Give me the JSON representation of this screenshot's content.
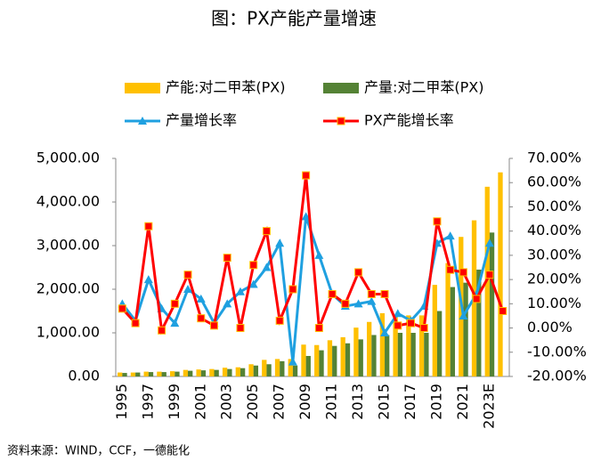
{
  "chart_data": {
    "type": "bar_line",
    "title": "图：PX产能产量增速",
    "source": "资料来源：WIND，CCF，一德能化",
    "categories": [
      "1995",
      null,
      "1997",
      null,
      "1999",
      null,
      "2001",
      null,
      "2003",
      null,
      "2005",
      null,
      "2007",
      null,
      "2009",
      null,
      "2011",
      null,
      "2013",
      null,
      "2015",
      null,
      "2017",
      null,
      "2019",
      null,
      "2021",
      null,
      "2023E",
      null
    ],
    "series": [
      {
        "name": "产能:对二甲苯(PX)",
        "type": "bar",
        "color": "#ffc000",
        "values": [
          90,
          90,
          110,
          110,
          120,
          150,
          160,
          170,
          200,
          210,
          280,
          380,
          400,
          400,
          730,
          720,
          830,
          900,
          1120,
          1250,
          1450,
          1400,
          1400,
          1400,
          2100,
          2600,
          3200,
          3580,
          4350,
          4680
        ]
      },
      {
        "name": "产量:对二甲苯(PX)",
        "type": "bar",
        "color": "#548235",
        "values": [
          80,
          90,
          100,
          100,
          110,
          130,
          140,
          150,
          170,
          190,
          250,
          280,
          350,
          250,
          470,
          600,
          700,
          760,
          850,
          950,
          950,
          1000,
          1000,
          1000,
          1500,
          2050,
          2150,
          2450,
          3300,
          null
        ]
      },
      {
        "name": "产量增长率",
        "type": "line",
        "axis": "y2",
        "color": "#1fa0e0",
        "marker": "triangle",
        "values": [
          10,
          3,
          20,
          8,
          2,
          16,
          12,
          2,
          10,
          15,
          18,
          25,
          35,
          -14,
          46,
          30,
          14,
          9,
          10,
          11,
          -2,
          6,
          3,
          9,
          35,
          38,
          5,
          14,
          35,
          null
        ]
      },
      {
        "name": "PX产能增长率",
        "type": "line",
        "axis": "y2",
        "color": "#ff0000",
        "marker": "square",
        "values": [
          8,
          2,
          42,
          -1,
          10,
          22,
          4,
          1,
          29,
          0,
          26,
          40,
          3,
          16,
          63,
          0,
          14,
          10,
          23,
          14,
          14,
          1,
          2,
          0,
          44,
          24,
          23,
          12,
          22,
          7
        ]
      }
    ],
    "ylim": [
      0,
      5000
    ],
    "yticks": [
      {
        "value": 0,
        "label": "0.00"
      },
      {
        "value": 1000,
        "label": "1,000.00"
      },
      {
        "value": 2000,
        "label": "2,000.00"
      },
      {
        "value": 3000,
        "label": "3,000.00"
      },
      {
        "value": 4000,
        "label": "4,000.00"
      },
      {
        "value": 5000,
        "label": "5,000.00"
      }
    ],
    "y2lim": [
      -20,
      70
    ],
    "y2ticks": [
      {
        "value": -20,
        "label": "-20.00%"
      },
      {
        "value": -10,
        "label": "-10.00%"
      },
      {
        "value": 0,
        "label": "0.00%"
      },
      {
        "value": 10,
        "label": "10.00%"
      },
      {
        "value": 20,
        "label": "20.00%"
      },
      {
        "value": 30,
        "label": "30.00%"
      },
      {
        "value": 40,
        "label": "40.00%"
      },
      {
        "value": 50,
        "label": "50.00%"
      },
      {
        "value": 60,
        "label": "60.00%"
      },
      {
        "value": 70,
        "label": "70.00%"
      }
    ]
  }
}
